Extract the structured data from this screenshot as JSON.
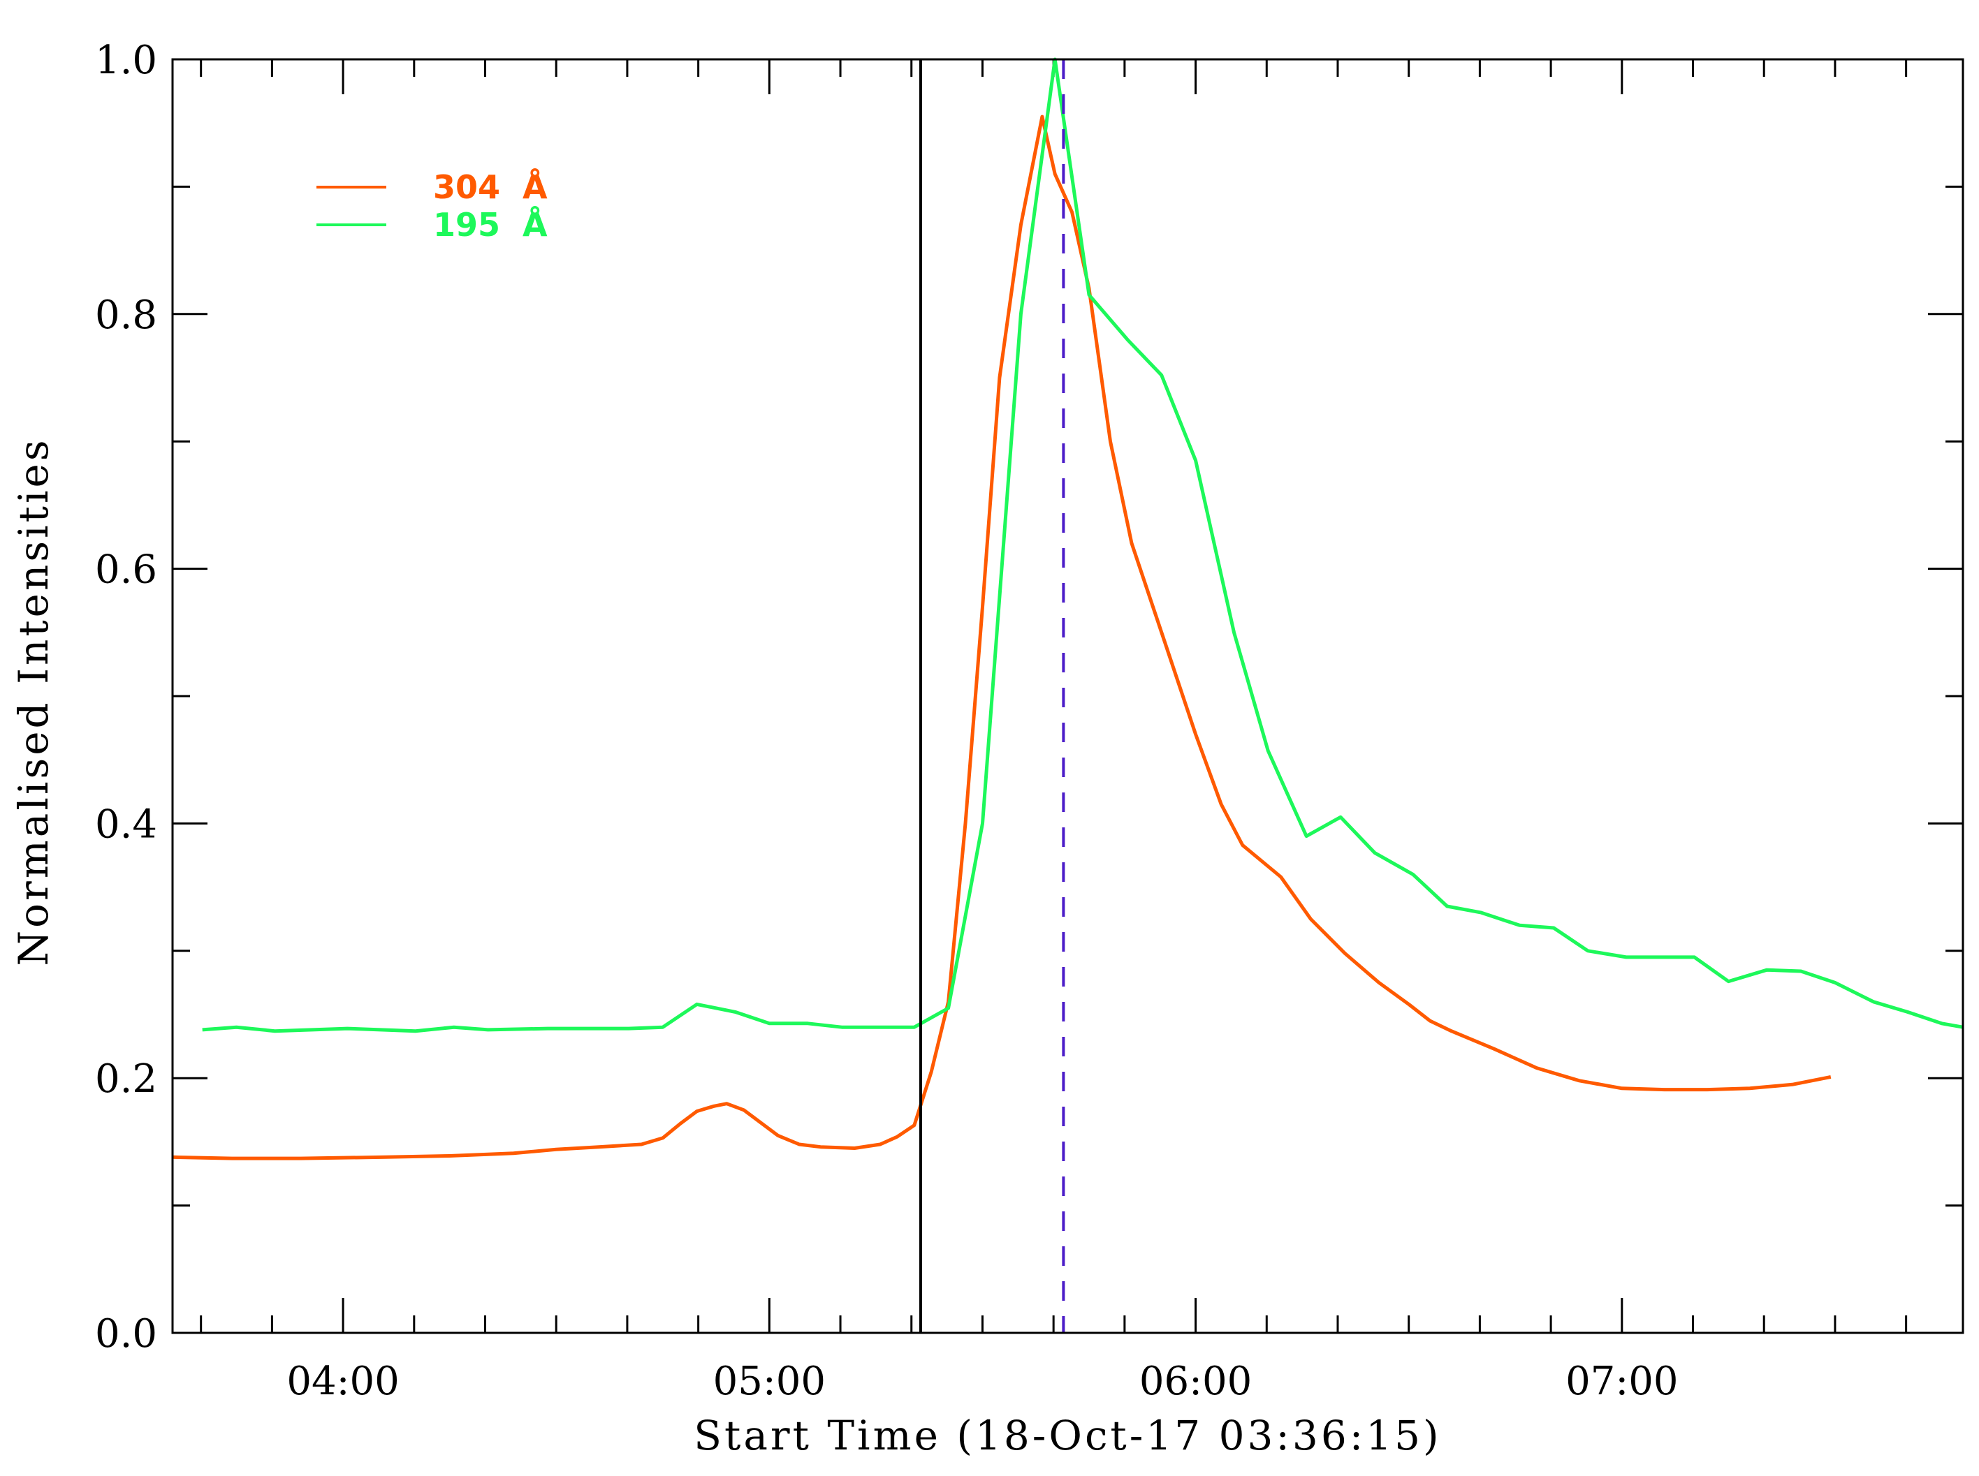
{
  "chart_data": {
    "type": "line",
    "xlabel": "Start Time (18-Oct-17 03:36:15)",
    "ylabel": "Normalised Intensities",
    "xlim": [
      3.6,
      7.8
    ],
    "ylim": [
      0.0,
      1.0
    ],
    "x_unit": "hours (UT)",
    "xticks": [
      {
        "value": 4.0,
        "label": "04:00"
      },
      {
        "value": 5.0,
        "label": "05:00"
      },
      {
        "value": 6.0,
        "label": "06:00"
      },
      {
        "value": 7.0,
        "label": "07:00"
      }
    ],
    "yticks": [
      {
        "value": 0.0,
        "label": "0.0"
      },
      {
        "value": 0.2,
        "label": "0.2"
      },
      {
        "value": 0.4,
        "label": "0.4"
      },
      {
        "value": 0.6,
        "label": "0.6"
      },
      {
        "value": 0.8,
        "label": "0.8"
      },
      {
        "value": 1.0,
        "label": "1.0"
      }
    ],
    "grid": false,
    "legend_position": "top-left",
    "series": [
      {
        "name": "304  Å",
        "color": "#ff5a00",
        "points": [
          [
            3.6,
            0.138
          ],
          [
            3.74,
            0.137
          ],
          [
            3.9,
            0.137
          ],
          [
            4.1,
            0.138
          ],
          [
            4.25,
            0.139
          ],
          [
            4.4,
            0.141
          ],
          [
            4.5,
            0.144
          ],
          [
            4.6,
            0.146
          ],
          [
            4.7,
            0.148
          ],
          [
            4.75,
            0.153
          ],
          [
            4.79,
            0.164
          ],
          [
            4.83,
            0.174
          ],
          [
            4.87,
            0.178
          ],
          [
            4.9,
            0.18
          ],
          [
            4.94,
            0.175
          ],
          [
            4.98,
            0.165
          ],
          [
            5.02,
            0.155
          ],
          [
            5.07,
            0.148
          ],
          [
            5.12,
            0.146
          ],
          [
            5.2,
            0.145
          ],
          [
            5.26,
            0.148
          ],
          [
            5.3,
            0.154
          ],
          [
            5.34,
            0.163
          ],
          [
            5.38,
            0.205
          ],
          [
            5.42,
            0.26
          ],
          [
            5.46,
            0.4
          ],
          [
            5.5,
            0.57
          ],
          [
            5.54,
            0.75
          ],
          [
            5.59,
            0.87
          ],
          [
            5.64,
            0.955
          ],
          [
            5.67,
            0.91
          ],
          [
            5.71,
            0.88
          ],
          [
            5.75,
            0.82
          ],
          [
            5.8,
            0.7
          ],
          [
            5.85,
            0.62
          ],
          [
            5.92,
            0.55
          ],
          [
            6.0,
            0.47
          ],
          [
            6.06,
            0.415
          ],
          [
            6.11,
            0.383
          ],
          [
            6.2,
            0.358
          ],
          [
            6.27,
            0.325
          ],
          [
            6.35,
            0.298
          ],
          [
            6.43,
            0.275
          ],
          [
            6.5,
            0.258
          ],
          [
            6.55,
            0.245
          ],
          [
            6.6,
            0.237
          ],
          [
            6.7,
            0.223
          ],
          [
            6.8,
            0.208
          ],
          [
            6.9,
            0.198
          ],
          [
            7.0,
            0.192
          ],
          [
            7.1,
            0.191
          ],
          [
            7.2,
            0.191
          ],
          [
            7.3,
            0.192
          ],
          [
            7.4,
            0.195
          ],
          [
            7.49,
            0.201
          ]
        ]
      },
      {
        "name": "195  Å",
        "color": "#1df85a",
        "points": [
          [
            3.67,
            0.238
          ],
          [
            3.75,
            0.24
          ],
          [
            3.84,
            0.237
          ],
          [
            4.01,
            0.239
          ],
          [
            4.17,
            0.237
          ],
          [
            4.26,
            0.24
          ],
          [
            4.34,
            0.238
          ],
          [
            4.48,
            0.239
          ],
          [
            4.59,
            0.239
          ],
          [
            4.67,
            0.239
          ],
          [
            4.75,
            0.24
          ],
          [
            4.83,
            0.258
          ],
          [
            4.92,
            0.252
          ],
          [
            5.0,
            0.243
          ],
          [
            5.09,
            0.243
          ],
          [
            5.17,
            0.24
          ],
          [
            5.25,
            0.24
          ],
          [
            5.34,
            0.24
          ],
          [
            5.42,
            0.255
          ],
          [
            5.5,
            0.4
          ],
          [
            5.59,
            0.8
          ],
          [
            5.67,
            1.0
          ],
          [
            5.75,
            0.815
          ],
          [
            5.84,
            0.78
          ],
          [
            5.92,
            0.752
          ],
          [
            6.0,
            0.685
          ],
          [
            6.09,
            0.55
          ],
          [
            6.17,
            0.457
          ],
          [
            6.26,
            0.39
          ],
          [
            6.34,
            0.405
          ],
          [
            6.42,
            0.377
          ],
          [
            6.51,
            0.36
          ],
          [
            6.59,
            0.335
          ],
          [
            6.67,
            0.33
          ],
          [
            6.76,
            0.32
          ],
          [
            6.84,
            0.318
          ],
          [
            6.92,
            0.3
          ],
          [
            7.01,
            0.295
          ],
          [
            7.09,
            0.295
          ],
          [
            7.17,
            0.295
          ],
          [
            7.25,
            0.276
          ],
          [
            7.34,
            0.285
          ],
          [
            7.42,
            0.284
          ],
          [
            7.5,
            0.275
          ],
          [
            7.59,
            0.26
          ],
          [
            7.67,
            0.252
          ],
          [
            7.75,
            0.243
          ],
          [
            7.8,
            0.24
          ]
        ]
      }
    ],
    "markers": [
      {
        "x": 5.355,
        "style": "solid",
        "color": "#000000"
      },
      {
        "x": 5.69,
        "style": "dashed",
        "color": "#4b1cc8"
      }
    ]
  }
}
